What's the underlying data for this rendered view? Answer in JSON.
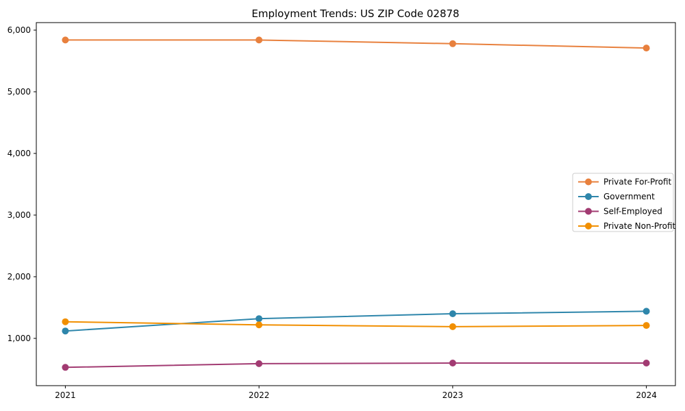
{
  "chart_data": {
    "type": "line",
    "title": "Employment Trends: US ZIP Code 02878",
    "xlabel": "",
    "ylabel": "",
    "x": [
      2021,
      2022,
      2023,
      2024
    ],
    "xtick_labels": [
      "2021",
      "2022",
      "2023",
      "2024"
    ],
    "ytick_values": [
      1000,
      2000,
      3000,
      4000,
      5000,
      6000
    ],
    "ytick_labels": [
      "1,000",
      "2,000",
      "3,000",
      "4,000",
      "5,000",
      "6,000"
    ],
    "xlim": [
      2020.85,
      2024.15
    ],
    "ylim": [
      233,
      6122
    ],
    "grid": false,
    "legend_position": "center right",
    "background_color": "#ffffff",
    "axis_color": "#000000",
    "text_color": "#000000",
    "legend_border_color": "#cccccc",
    "series": [
      {
        "name": "Private For-Profit",
        "color": "#E8803D",
        "values": [
          5840,
          5840,
          5780,
          5710
        ]
      },
      {
        "name": "Government",
        "color": "#2E86AB",
        "values": [
          1120,
          1320,
          1400,
          1440
        ]
      },
      {
        "name": "Self-Employed",
        "color": "#A23B72",
        "values": [
          530,
          590,
          600,
          600
        ]
      },
      {
        "name": "Private Non-Profit",
        "color": "#F18F01",
        "values": [
          1270,
          1220,
          1190,
          1210
        ]
      }
    ]
  }
}
